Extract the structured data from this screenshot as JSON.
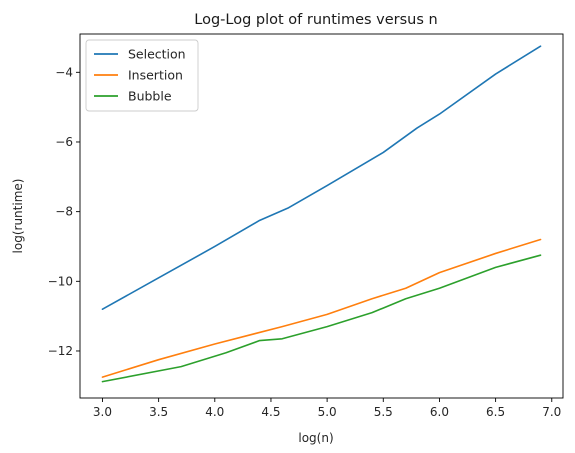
{
  "chart_data": {
    "type": "line",
    "title": "Log-Log plot of runtimes versus n",
    "xlabel": "log(n)",
    "ylabel": "log(runtime)",
    "xlim": [
      2.8,
      7.1
    ],
    "ylim": [
      -13.35,
      -2.9
    ],
    "xticks": [
      3.0,
      3.5,
      4.0,
      4.5,
      5.0,
      5.5,
      6.0,
      6.5,
      7.0
    ],
    "xtick_labels": [
      "3.0",
      "3.5",
      "4.0",
      "4.5",
      "5.0",
      "5.5",
      "6.0",
      "6.5",
      "7.0"
    ],
    "yticks": [
      -12,
      -10,
      -8,
      -6,
      -4
    ],
    "ytick_labels": [
      "−12",
      "−10",
      "−8",
      "−6",
      "−4"
    ],
    "grid": false,
    "legend": "top-left",
    "series": [
      {
        "name": "Selection",
        "color": "#1f77b4",
        "x": [
          3.0,
          3.5,
          4.0,
          4.4,
          4.65,
          5.0,
          5.5,
          5.8,
          6.0,
          6.5,
          6.9
        ],
        "y": [
          -10.8,
          -9.9,
          -9.0,
          -8.25,
          -7.9,
          -7.25,
          -6.3,
          -5.6,
          -5.2,
          -4.05,
          -3.25
        ]
      },
      {
        "name": "Insertion",
        "color": "#ff7f0e",
        "x": [
          3.0,
          3.5,
          4.0,
          4.6,
          5.0,
          5.4,
          5.7,
          6.0,
          6.5,
          6.9
        ],
        "y": [
          -12.75,
          -12.25,
          -11.8,
          -11.3,
          -10.95,
          -10.5,
          -10.2,
          -9.75,
          -9.2,
          -8.8
        ]
      },
      {
        "name": "Bubble",
        "color": "#2ca02c",
        "x": [
          3.0,
          3.7,
          4.1,
          4.4,
          4.6,
          5.0,
          5.4,
          5.7,
          6.0,
          6.5,
          6.9
        ],
        "y": [
          -12.88,
          -12.45,
          -12.05,
          -11.7,
          -11.65,
          -11.3,
          -10.9,
          -10.5,
          -10.2,
          -9.6,
          -9.25
        ]
      }
    ]
  }
}
